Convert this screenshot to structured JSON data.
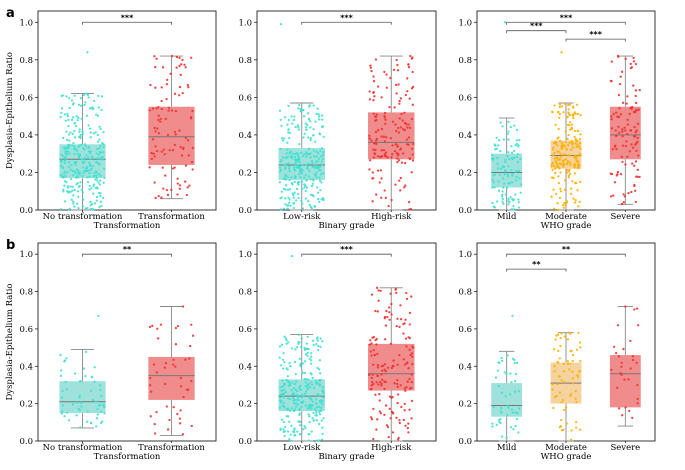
{
  "figure": {
    "panel_labels": [
      "a",
      "b"
    ],
    "ylabel": "Dysplasia-Epithelium Ratio"
  },
  "colors": {
    "green": "#40E0D0",
    "red": "#F03030",
    "orange": "#FFB000",
    "box_green": "#9FE2DC",
    "box_red": "#F08C8C",
    "box_orange": "#F5D3A0"
  },
  "chart_data": [
    {
      "type": "box",
      "row": 0,
      "col": 0,
      "xlabel": "Transformation",
      "ylabel": "Dysplasia-Epithelium Ratio",
      "ylim": [
        0,
        1.0
      ],
      "yticks": [
        "0.0",
        "0.2",
        "0.4",
        "0.6",
        "0.8",
        "1.0"
      ],
      "categories": [
        "No transformation",
        "Transformation"
      ],
      "colors": [
        "green",
        "red"
      ],
      "boxes": [
        {
          "whislo": 0.0,
          "q1": 0.17,
          "median": 0.27,
          "q3": 0.35,
          "whishi": 0.62,
          "n": 300,
          "max": 0.84
        },
        {
          "whislo": 0.06,
          "q1": 0.24,
          "median": 0.39,
          "q3": 0.55,
          "whishi": 0.82,
          "n": 100,
          "max": 0.82
        }
      ],
      "significance": [
        {
          "from": 0,
          "to": 1,
          "label": "***",
          "y": 1.0
        }
      ]
    },
    {
      "type": "box",
      "row": 0,
      "col": 1,
      "xlabel": "Binary grade",
      "ylabel": "",
      "ylim": [
        0,
        1.0
      ],
      "yticks": [
        "0.0",
        "0.2",
        "0.4",
        "0.6",
        "0.8",
        "1.0"
      ],
      "categories": [
        "Low-risk",
        "High-risk"
      ],
      "colors": [
        "green",
        "red"
      ],
      "boxes": [
        {
          "whislo": 0.0,
          "q1": 0.16,
          "median": 0.24,
          "q3": 0.33,
          "whishi": 0.57,
          "n": 280,
          "max": 0.99
        },
        {
          "whislo": 0.0,
          "q1": 0.27,
          "median": 0.36,
          "q3": 0.52,
          "whishi": 0.82,
          "n": 160,
          "max": 0.82
        }
      ],
      "significance": [
        {
          "from": 0,
          "to": 1,
          "label": "***",
          "y": 1.0
        }
      ]
    },
    {
      "type": "box",
      "row": 0,
      "col": 2,
      "xlabel": "WHO grade",
      "ylabel": "",
      "ylim": [
        0,
        1.0
      ],
      "yticks": [
        "0.0",
        "0.2",
        "0.4",
        "0.6",
        "0.8",
        "1.0"
      ],
      "categories": [
        "Mild",
        "Moderate",
        "Severe"
      ],
      "colors": [
        "green",
        "orange",
        "red"
      ],
      "boxes": [
        {
          "whislo": 0.0,
          "q1": 0.12,
          "median": 0.2,
          "q3": 0.3,
          "whishi": 0.49,
          "n": 110,
          "max": 1.0
        },
        {
          "whislo": 0.0,
          "q1": 0.22,
          "median": 0.29,
          "q3": 0.37,
          "whishi": 0.57,
          "n": 200,
          "max": 0.84
        },
        {
          "whislo": 0.03,
          "q1": 0.27,
          "median": 0.4,
          "q3": 0.55,
          "whishi": 0.82,
          "n": 110,
          "max": 0.82
        }
      ],
      "significance": [
        {
          "from": 0,
          "to": 1,
          "label": "***",
          "y": 0.955
        },
        {
          "from": 0,
          "to": 2,
          "label": "***",
          "y": 1.0
        },
        {
          "from": 1,
          "to": 2,
          "label": "***",
          "y": 0.91
        }
      ]
    },
    {
      "type": "box",
      "row": 1,
      "col": 0,
      "xlabel": "Transformation",
      "ylabel": "Dysplasia-Epithelium Ratio",
      "ylim": [
        0,
        1.0
      ],
      "yticks": [
        "0.0",
        "0.2",
        "0.4",
        "0.6",
        "0.8",
        "1.0"
      ],
      "categories": [
        "No transformation",
        "Transformation"
      ],
      "colors": [
        "green",
        "red"
      ],
      "boxes": [
        {
          "whislo": 0.07,
          "q1": 0.15,
          "median": 0.21,
          "q3": 0.32,
          "whishi": 0.49,
          "n": 60,
          "max": 0.67
        },
        {
          "whislo": 0.03,
          "q1": 0.22,
          "median": 0.35,
          "q3": 0.45,
          "whishi": 0.72,
          "n": 45,
          "max": 0.72
        }
      ],
      "significance": [
        {
          "from": 0,
          "to": 1,
          "label": "**",
          "y": 1.0
        }
      ]
    },
    {
      "type": "box",
      "row": 1,
      "col": 1,
      "xlabel": "Binary grade",
      "ylabel": "",
      "ylim": [
        0,
        1.0
      ],
      "yticks": [
        "0.0",
        "0.2",
        "0.4",
        "0.6",
        "0.8",
        "1.0"
      ],
      "categories": [
        "Low-risk",
        "High-risk"
      ],
      "colors": [
        "green",
        "red"
      ],
      "boxes": [
        {
          "whislo": 0.0,
          "q1": 0.16,
          "median": 0.24,
          "q3": 0.33,
          "whishi": 0.57,
          "n": 280,
          "max": 0.99
        },
        {
          "whislo": 0.0,
          "q1": 0.27,
          "median": 0.36,
          "q3": 0.52,
          "whishi": 0.82,
          "n": 160,
          "max": 0.82
        }
      ],
      "significance": [
        {
          "from": 0,
          "to": 1,
          "label": "***",
          "y": 1.0
        }
      ]
    },
    {
      "type": "box",
      "row": 1,
      "col": 2,
      "xlabel": "WHO grade",
      "ylabel": "",
      "ylim": [
        0,
        1.0
      ],
      "yticks": [
        "0.0",
        "0.2",
        "0.4",
        "0.6",
        "0.8",
        "1.0"
      ],
      "categories": [
        "Mild",
        "Moderate",
        "Severe"
      ],
      "colors": [
        "green",
        "orange",
        "red"
      ],
      "boxes": [
        {
          "whislo": 0.0,
          "q1": 0.13,
          "median": 0.19,
          "q3": 0.31,
          "whishi": 0.48,
          "n": 50,
          "max": 0.67
        },
        {
          "whislo": 0.0,
          "q1": 0.2,
          "median": 0.31,
          "q3": 0.42,
          "whishi": 0.58,
          "n": 70,
          "max": 0.58
        },
        {
          "whislo": 0.08,
          "q1": 0.18,
          "median": 0.36,
          "q3": 0.46,
          "whishi": 0.72,
          "n": 30,
          "max": 0.72
        }
      ],
      "significance": [
        {
          "from": 0,
          "to": 1,
          "label": "**",
          "y": 0.92
        },
        {
          "from": 0,
          "to": 2,
          "label": "**",
          "y": 1.0
        }
      ]
    }
  ]
}
